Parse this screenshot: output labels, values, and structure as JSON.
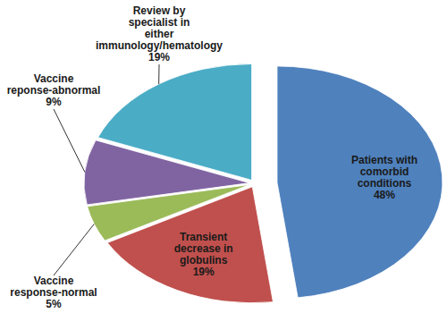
{
  "chart_data": {
    "type": "pie",
    "categories": [
      "Patients with comorbid conditions",
      "Transient decrease in globulins",
      "Vaccine response-normal",
      "Vaccine reponse-abnormal",
      "Review by specialist in either immunology/hematology"
    ],
    "values": [
      48,
      19,
      5,
      9,
      19
    ],
    "value_labels": [
      "48%",
      "19%",
      "5%",
      "9%",
      "19%"
    ],
    "colors": [
      "#4f81bd",
      "#c0504d",
      "#9bbb59",
      "#8064a2",
      "#4bacc6"
    ],
    "data_labels": true
  }
}
